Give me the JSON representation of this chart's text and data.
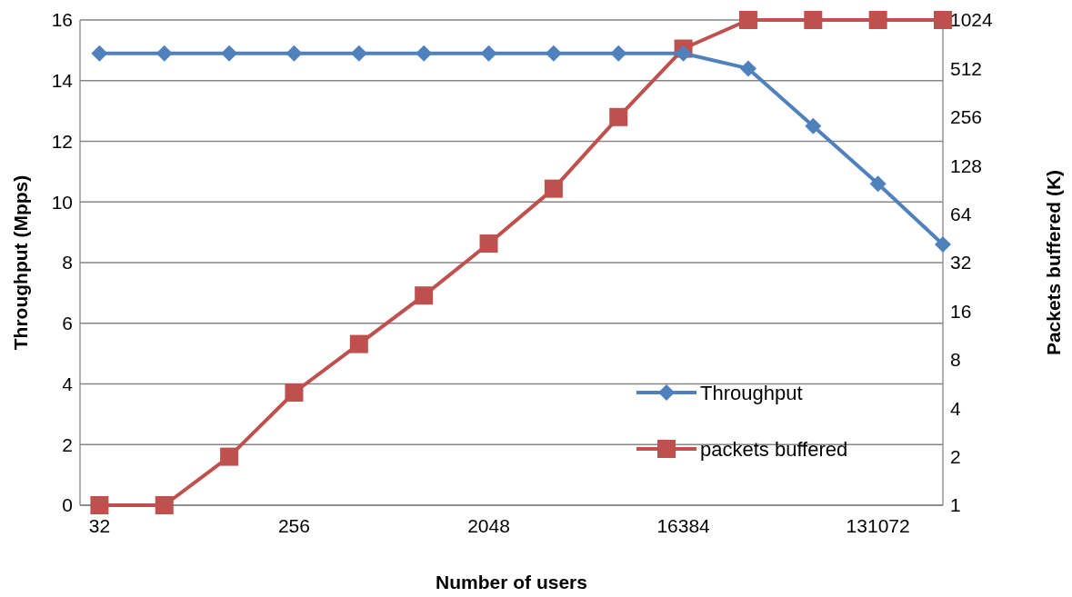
{
  "chart_data": {
    "type": "line",
    "xlabel": "Number of users",
    "ylabel": "Throughput (Mpps)",
    "y2label": "Packets buffered (K)",
    "categories": [
      "32",
      null,
      null,
      "256",
      null,
      null,
      "2048",
      null,
      null,
      "16384",
      null,
      null,
      "131072",
      null
    ],
    "series": [
      {
        "name": "Throughput",
        "color": "#4f81bd",
        "marker": "diamond",
        "values": [
          14.9,
          14.9,
          14.9,
          14.9,
          14.9,
          14.9,
          14.9,
          14.9,
          14.9,
          14.9,
          14.4,
          12.5,
          10.6,
          8.6
        ]
      },
      {
        "name": "packets buffered",
        "color": "#c0504d",
        "marker": "square",
        "axis": "y2",
        "values": [
          1,
          1,
          2,
          5,
          10,
          20,
          42,
          92,
          256,
          680,
          1024,
          1024,
          1024,
          1024
        ]
      }
    ],
    "ylim": [
      0,
      16
    ],
    "yticks": [
      0,
      2,
      4,
      6,
      8,
      10,
      12,
      14,
      16
    ],
    "y2lim": [
      1,
      1024
    ],
    "y2ticks": [
      1,
      2,
      4,
      8,
      16,
      32,
      64,
      128,
      256,
      512,
      1024
    ],
    "log": "y2",
    "grid": "y",
    "legend": "bottom right",
    "line_style": "solid"
  }
}
